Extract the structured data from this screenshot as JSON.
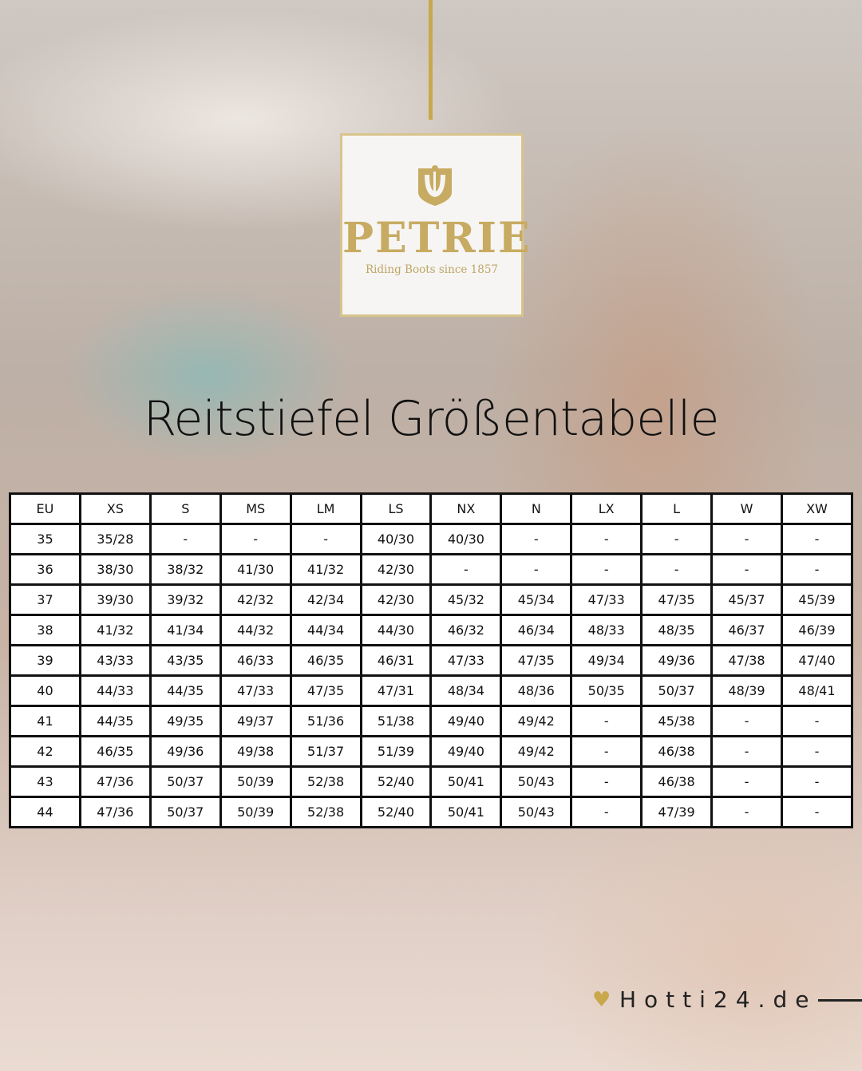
{
  "logo": {
    "brand": "PETRIE",
    "tagline": "Riding Boots since 1857",
    "crest_text": "PETRIE"
  },
  "title": "Reitstiefel Größentabelle",
  "table": {
    "headers": [
      "EU",
      "XS",
      "S",
      "MS",
      "LM",
      "LS",
      "NX",
      "N",
      "LX",
      "L",
      "W",
      "XW"
    ],
    "rows": [
      [
        "35",
        "35/28",
        "-",
        "-",
        "-",
        "40/30",
        "40/30",
        "-",
        "-",
        "-",
        "-",
        "-"
      ],
      [
        "36",
        "38/30",
        "38/32",
        "41/30",
        "41/32",
        "42/30",
        "-",
        "-",
        "-",
        "-",
        "-",
        "-"
      ],
      [
        "37",
        "39/30",
        "39/32",
        "42/32",
        "42/34",
        "42/30",
        "45/32",
        "45/34",
        "47/33",
        "47/35",
        "45/37",
        "45/39"
      ],
      [
        "38",
        "41/32",
        "41/34",
        "44/32",
        "44/34",
        "44/30",
        "46/32",
        "46/34",
        "48/33",
        "48/35",
        "46/37",
        "46/39"
      ],
      [
        "39",
        "43/33",
        "43/35",
        "46/33",
        "46/35",
        "46/31",
        "47/33",
        "47/35",
        "49/34",
        "49/36",
        "47/38",
        "47/40"
      ],
      [
        "40",
        "44/33",
        "44/35",
        "47/33",
        "47/35",
        "47/31",
        "48/34",
        "48/36",
        "50/35",
        "50/37",
        "48/39",
        "48/41"
      ],
      [
        "41",
        "44/35",
        "49/35",
        "49/37",
        "51/36",
        "51/38",
        "49/40",
        "49/42",
        "-",
        "45/38",
        "-",
        "-"
      ],
      [
        "42",
        "46/35",
        "49/36",
        "49/38",
        "51/37",
        "51/39",
        "49/40",
        "49/42",
        "-",
        "46/38",
        "-",
        "-"
      ],
      [
        "43",
        "47/36",
        "50/37",
        "50/39",
        "52/38",
        "52/40",
        "50/41",
        "50/43",
        "-",
        "46/38",
        "-",
        "-"
      ],
      [
        "44",
        "47/36",
        "50/37",
        "50/39",
        "52/38",
        "52/40",
        "50/41",
        "50/43",
        "-",
        "47/39",
        "-",
        "-"
      ]
    ]
  },
  "footer": {
    "site": "Hotti24.de",
    "icon": "heart-icon",
    "accent": "#c9a84c"
  }
}
